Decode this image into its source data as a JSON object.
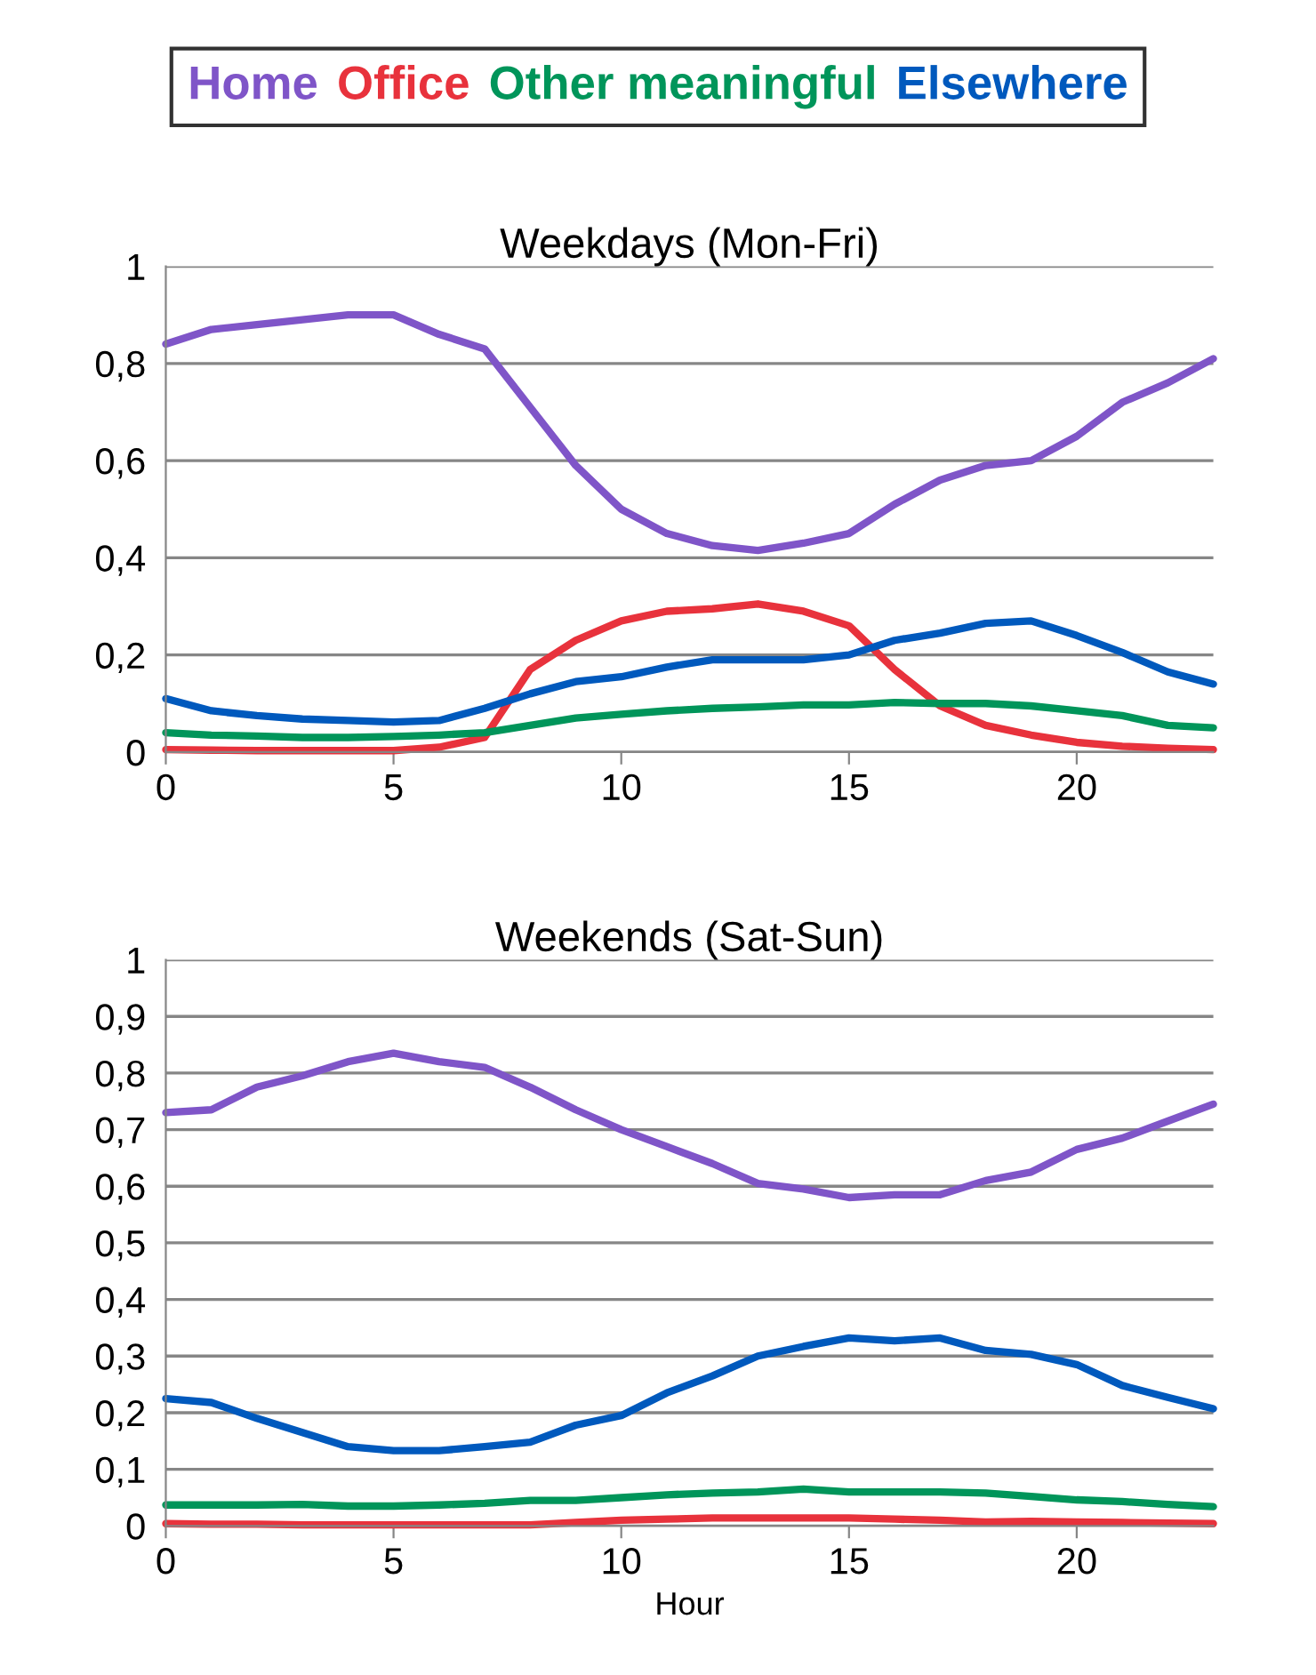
{
  "chart_data": [
    {
      "type": "line",
      "title": "Weekdays (Mon-Fri)",
      "legend": "top",
      "grid": "y",
      "marker": "none",
      "line_style": "solid",
      "tick_labels": "xy",
      "x": [
        0,
        1,
        2,
        3,
        4,
        5,
        6,
        7,
        8,
        9,
        10,
        11,
        12,
        13,
        14,
        15,
        16,
        17,
        18,
        19,
        20,
        21,
        22,
        23
      ],
      "xlim": [
        0,
        23
      ],
      "xticks": [
        0,
        5,
        10,
        15,
        20
      ],
      "ylim": [
        0,
        1
      ],
      "yticks": [
        0,
        {
          "value": 0.2,
          "label": "0,2"
        },
        {
          "value": 0.4,
          "label": "0,4"
        },
        {
          "value": 0.6,
          "label": "0,6"
        },
        {
          "value": 0.8,
          "label": "0,8"
        },
        1
      ],
      "series": [
        {
          "name": "Home",
          "color": "#7f55c8",
          "values": [
            0.84,
            0.87,
            0.88,
            0.89,
            0.9,
            0.9,
            0.86,
            0.83,
            0.71,
            0.59,
            0.5,
            0.45,
            0.425,
            0.415,
            0.43,
            0.45,
            0.51,
            0.56,
            0.59,
            0.6,
            0.65,
            0.72,
            0.76,
            0.81
          ]
        },
        {
          "name": "Office",
          "color": "#e8323c",
          "values": [
            0.005,
            0.004,
            0.003,
            0.003,
            0.003,
            0.003,
            0.01,
            0.03,
            0.17,
            0.23,
            0.27,
            0.29,
            0.295,
            0.305,
            0.29,
            0.26,
            0.17,
            0.095,
            0.055,
            0.035,
            0.02,
            0.012,
            0.008,
            0.005
          ]
        },
        {
          "name": "Other meaningful",
          "color": "#00955a",
          "values": [
            0.04,
            0.035,
            0.033,
            0.03,
            0.03,
            0.032,
            0.035,
            0.04,
            0.055,
            0.07,
            0.078,
            0.085,
            0.09,
            0.093,
            0.097,
            0.097,
            0.102,
            0.1,
            0.1,
            0.095,
            0.085,
            0.075,
            0.055,
            0.05
          ]
        },
        {
          "name": "Elsewhere",
          "color": "#0059bd",
          "values": [
            0.11,
            0.085,
            0.075,
            0.068,
            0.065,
            0.062,
            0.065,
            0.09,
            0.12,
            0.145,
            0.155,
            0.175,
            0.19,
            0.19,
            0.19,
            0.2,
            0.23,
            0.245,
            0.265,
            0.27,
            0.24,
            0.205,
            0.165,
            0.14
          ]
        }
      ]
    },
    {
      "type": "line",
      "title": "Weekends (Sat-Sun)",
      "xlabel": "Hour",
      "grid": "y",
      "marker": "none",
      "line_style": "solid",
      "x": [
        0,
        1,
        2,
        3,
        4,
        5,
        6,
        7,
        8,
        9,
        10,
        11,
        12,
        13,
        14,
        15,
        16,
        17,
        18,
        19,
        20,
        21,
        22,
        23
      ],
      "xlim": [
        0,
        23
      ],
      "xticks": [
        0,
        5,
        10,
        15,
        20
      ],
      "ylim": [
        0,
        1
      ],
      "yticks": [
        0,
        {
          "value": 0.1,
          "label": "0,1"
        },
        {
          "value": 0.2,
          "label": "0,2"
        },
        {
          "value": 0.3,
          "label": "0,3"
        },
        {
          "value": 0.4,
          "label": "0,4"
        },
        {
          "value": 0.5,
          "label": "0,5"
        },
        {
          "value": 0.6,
          "label": "0,6"
        },
        {
          "value": 0.7,
          "label": "0,7"
        },
        {
          "value": 0.8,
          "label": "0,8"
        },
        {
          "value": 0.9,
          "label": "0,9"
        },
        1
      ],
      "series": [
        {
          "color": "#7f55c8",
          "values": [
            0.73,
            0.735,
            0.775,
            0.795,
            0.82,
            0.835,
            0.82,
            0.81,
            0.775,
            0.735,
            0.7,
            0.67,
            0.64,
            0.605,
            0.595,
            0.58,
            0.585,
            0.585,
            0.61,
            0.625,
            0.665,
            0.685,
            0.715,
            0.745
          ]
        },
        {
          "color": "#e8323c",
          "values": [
            0.004,
            0.003,
            0.003,
            0.002,
            0.002,
            0.002,
            0.002,
            0.002,
            0.002,
            0.006,
            0.01,
            0.012,
            0.014,
            0.014,
            0.014,
            0.014,
            0.012,
            0.01,
            0.007,
            0.008,
            0.007,
            0.006,
            0.005,
            0.004
          ]
        },
        {
          "color": "#00955a",
          "values": [
            0.037,
            0.037,
            0.037,
            0.038,
            0.035,
            0.035,
            0.037,
            0.04,
            0.045,
            0.045,
            0.05,
            0.055,
            0.058,
            0.06,
            0.065,
            0.06,
            0.06,
            0.06,
            0.058,
            0.052,
            0.046,
            0.043,
            0.038,
            0.034
          ]
        },
        {
          "color": "#0059bd",
          "values": [
            0.225,
            0.218,
            0.19,
            0.165,
            0.14,
            0.133,
            0.133,
            0.14,
            0.148,
            0.178,
            0.195,
            0.235,
            0.265,
            0.3,
            0.317,
            0.332,
            0.327,
            0.332,
            0.31,
            0.303,
            0.285,
            0.248,
            0.227,
            0.207
          ]
        }
      ]
    }
  ]
}
